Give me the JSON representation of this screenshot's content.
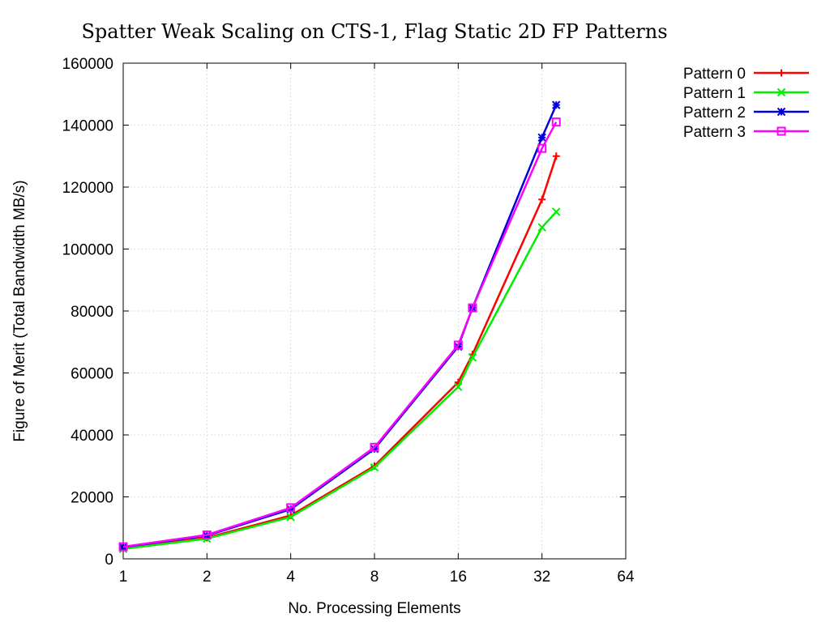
{
  "chart_data": {
    "type": "line",
    "title": "Spatter Weak Scaling on CTS-1, Flag Static 2D FP Patterns",
    "xlabel": "No. Processing Elements",
    "ylabel": "Figure of Merit (Total Bandwidth MB/s)",
    "xscale": "log2",
    "xlim": [
      1,
      64
    ],
    "ylim": [
      0,
      160000
    ],
    "xticks": [
      1,
      2,
      4,
      8,
      16,
      32,
      64
    ],
    "xtick_labels": [
      "1",
      "2",
      "4",
      "8",
      "16",
      "32",
      "64"
    ],
    "yticks": [
      0,
      20000,
      40000,
      60000,
      80000,
      100000,
      120000,
      140000,
      160000
    ],
    "ytick_labels": [
      "0",
      "20000",
      "40000",
      "60000",
      "80000",
      "100000",
      "120000",
      "140000",
      "160000"
    ],
    "grid": true,
    "legend_position": "outside-top-right",
    "series": [
      {
        "name": "Pattern 0",
        "color": "#ff0000",
        "marker": "plus",
        "x": [
          1,
          2,
          4,
          8,
          16,
          18,
          32,
          36
        ],
        "y": [
          3500,
          6800,
          14000,
          30000,
          57000,
          66000,
          116000,
          130000
        ]
      },
      {
        "name": "Pattern 1",
        "color": "#00ee00",
        "marker": "cross",
        "x": [
          1,
          2,
          4,
          8,
          16,
          18,
          32,
          36
        ],
        "y": [
          3200,
          6500,
          13500,
          29500,
          55500,
          65000,
          107000,
          112000
        ]
      },
      {
        "name": "Pattern 2",
        "color": "#0000dd",
        "marker": "star",
        "x": [
          1,
          2,
          4,
          8,
          16,
          18,
          32,
          36
        ],
        "y": [
          3800,
          7500,
          16000,
          35500,
          68500,
          81000,
          136000,
          146500
        ]
      },
      {
        "name": "Pattern 3",
        "color": "#ff00ff",
        "marker": "square",
        "x": [
          1,
          2,
          4,
          8,
          16,
          18,
          32,
          36
        ],
        "y": [
          3900,
          7700,
          16500,
          36000,
          69000,
          81000,
          132500,
          141000
        ]
      }
    ]
  }
}
